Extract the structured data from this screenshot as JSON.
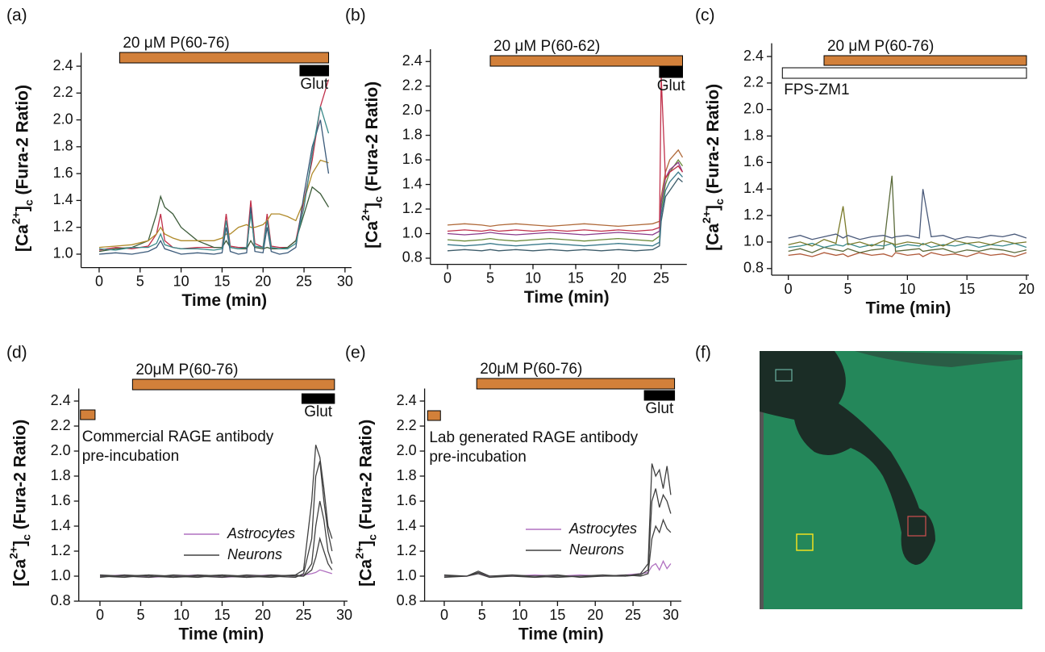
{
  "chart_data": [
    {
      "type": "line",
      "label": "(a)",
      "x_label": "Time (min)",
      "y_label": [
        "[Ca",
        "2+",
        "]",
        "c",
        " (Fura-2 Ratio)"
      ],
      "xlim": [
        -2.2,
        30.8
      ],
      "xticks": [
        0,
        5,
        10,
        15,
        20,
        25,
        30
      ],
      "ylim": [
        0.9,
        2.5
      ],
      "yticks": [
        {
          "value": 1,
          "label": "1.0"
        },
        1.2,
        1.4,
        1.6,
        1.8,
        {
          "value": 2,
          "label": "2.0"
        },
        2.2,
        2.4
      ],
      "bars": [
        {
          "label": "20 μM P(60-76)",
          "span": [
            2.5,
            28
          ],
          "color": "#d2803a"
        },
        {
          "label": "Glut",
          "span": [
            24.5,
            28
          ],
          "color": "#000000"
        }
      ],
      "x": [
        0,
        2,
        4,
        6,
        7,
        7.5,
        8,
        9,
        10,
        12,
        14,
        15,
        15.5,
        16,
        17,
        18,
        18.5,
        19,
        20,
        20.5,
        21,
        22,
        23,
        24,
        25,
        26,
        27,
        28
      ],
      "series": [
        {
          "color": "#c0304a",
          "values": [
            1.03,
            1.05,
            1.04,
            1.06,
            1.15,
            1.3,
            1.1,
            1.05,
            1.04,
            1.05,
            1.05,
            1.05,
            1.3,
            1.06,
            1.05,
            1.05,
            1.4,
            1.08,
            1.05,
            1.3,
            1.06,
            1.05,
            1.05,
            1.1,
            1.4,
            1.7,
            2.1,
            2.3
          ]
        },
        {
          "color": "#3d5c3a",
          "values": [
            1.02,
            1.04,
            1.05,
            1.1,
            1.3,
            1.43,
            1.35,
            1.3,
            1.2,
            1.1,
            1.05,
            1.05,
            1.1,
            1.05,
            1.04,
            1.04,
            1.1,
            1.05,
            1.04,
            1.05,
            1.04,
            1.04,
            1.05,
            1.1,
            1.3,
            1.5,
            1.45,
            1.35
          ]
        },
        {
          "color": "#b08a2a",
          "values": [
            1.05,
            1.06,
            1.07,
            1.1,
            1.15,
            1.2,
            1.15,
            1.12,
            1.1,
            1.1,
            1.1,
            1.12,
            1.15,
            1.15,
            1.2,
            1.22,
            1.2,
            1.2,
            1.22,
            1.25,
            1.3,
            1.3,
            1.28,
            1.25,
            1.4,
            1.6,
            1.7,
            1.68
          ]
        },
        {
          "color": "#3b5a7a",
          "values": [
            1.0,
            1.01,
            1.0,
            1.02,
            1.05,
            1.1,
            1.04,
            1.02,
            1.0,
            1.01,
            1.0,
            1.01,
            1.2,
            1.02,
            1.0,
            1.01,
            1.35,
            1.02,
            1.01,
            1.2,
            1.02,
            1.0,
            1.01,
            1.05,
            1.45,
            1.8,
            2.0,
            1.6
          ]
        },
        {
          "color": "#3a8a8a",
          "values": [
            1.04,
            1.03,
            1.05,
            1.05,
            1.08,
            1.15,
            1.07,
            1.05,
            1.04,
            1.04,
            1.03,
            1.04,
            1.25,
            1.05,
            1.04,
            1.05,
            1.3,
            1.06,
            1.05,
            1.25,
            1.05,
            1.04,
            1.04,
            1.08,
            1.35,
            1.75,
            2.1,
            1.9
          ]
        }
      ]
    },
    {
      "type": "line",
      "label": "(b)",
      "x_label": "Time (min)",
      "y_label": [
        "[Ca",
        "2+",
        "]",
        "c",
        " (Fura-2 Ratio)"
      ],
      "xlim": [
        -2,
        28
      ],
      "xticks": [
        0,
        5,
        10,
        15,
        20,
        25
      ],
      "ylim": [
        0.75,
        2.5
      ],
      "yticks": [
        0.8,
        {
          "value": 1,
          "label": "1.0"
        },
        1.2,
        1.4,
        1.6,
        1.8,
        {
          "value": 2,
          "label": "2.0"
        },
        2.2,
        2.4
      ],
      "bars": [
        {
          "label": "20 μM P(60-62)",
          "span": [
            5,
            27.5
          ],
          "color": "#d2803a"
        },
        {
          "label": "Glut",
          "span": [
            24.8,
            27.5
          ],
          "color": "#000000"
        }
      ],
      "x": [
        0,
        2,
        4,
        5,
        6,
        8,
        10,
        12,
        14,
        16,
        18,
        20,
        22,
        24,
        24.8,
        25,
        25.5,
        26,
        27,
        27.5
      ],
      "series": [
        {
          "color": "#3d5c6a",
          "values": [
            0.86,
            0.87,
            0.86,
            0.87,
            0.86,
            0.87,
            0.86,
            0.87,
            0.86,
            0.87,
            0.86,
            0.87,
            0.86,
            0.87,
            0.9,
            1.1,
            1.3,
            1.35,
            1.45,
            1.42
          ]
        },
        {
          "color": "#6a8a3a",
          "values": [
            0.95,
            0.94,
            0.95,
            0.96,
            0.95,
            0.94,
            0.95,
            0.96,
            0.95,
            0.94,
            0.95,
            0.96,
            0.95,
            0.94,
            0.98,
            1.2,
            1.4,
            1.5,
            1.6,
            1.55
          ]
        },
        {
          "color": "#b06a3a",
          "values": [
            1.07,
            1.08,
            1.07,
            1.06,
            1.07,
            1.08,
            1.07,
            1.06,
            1.07,
            1.08,
            1.07,
            1.06,
            1.07,
            1.08,
            1.1,
            1.3,
            1.5,
            1.6,
            1.68,
            1.62
          ]
        },
        {
          "color": "#8a3a8a",
          "values": [
            1.0,
            0.99,
            1.0,
            1.01,
            1.0,
            0.99,
            1.0,
            1.01,
            1.0,
            0.99,
            1.0,
            1.01,
            1.0,
            0.99,
            1.02,
            1.25,
            1.45,
            1.52,
            1.58,
            1.5
          ]
        },
        {
          "color": "#3a7a8a",
          "values": [
            0.91,
            0.9,
            0.91,
            0.92,
            0.91,
            0.9,
            0.91,
            0.92,
            0.91,
            0.9,
            0.91,
            0.92,
            0.91,
            0.9,
            0.93,
            1.15,
            1.35,
            1.42,
            1.5,
            1.46
          ]
        },
        {
          "color": "#c0304a",
          "values": [
            1.02,
            1.03,
            1.02,
            1.03,
            1.02,
            1.03,
            1.02,
            1.03,
            1.02,
            1.03,
            1.02,
            1.03,
            1.02,
            1.03,
            1.05,
            2.28,
            1.45,
            1.5,
            1.55,
            1.5
          ]
        }
      ]
    },
    {
      "type": "line",
      "label": "(c)",
      "x_label": "Time (min)",
      "y_label": [
        "[Ca",
        "2+",
        "]",
        "c",
        " (Fura-2 Ratio)"
      ],
      "xlim": [
        -1.4,
        20.2
      ],
      "xticks": [
        0,
        5,
        10,
        15,
        20
      ],
      "ylim": [
        0.75,
        2.5
      ],
      "yticks": [
        0.8,
        {
          "value": 1,
          "label": "1.0"
        },
        1.2,
        1.4,
        1.6,
        1.8,
        {
          "value": 2,
          "label": "2.0"
        },
        2.2,
        2.4
      ],
      "bars": [
        {
          "label": "20 μM P(60-76)",
          "span": [
            3,
            20
          ],
          "color": "#d2803a"
        },
        {
          "label": "FPS-ZM1",
          "span": [
            -0.5,
            20
          ],
          "color": "#ffffff"
        }
      ],
      "x": [
        0,
        1,
        2,
        3,
        4,
        4.6,
        5,
        6,
        7,
        8,
        8.7,
        9,
        10,
        11,
        11.3,
        12,
        13,
        14,
        15,
        16,
        17,
        18,
        19,
        20
      ],
      "series": [
        {
          "color": "#b05a3a",
          "values": [
            0.9,
            0.91,
            0.89,
            0.92,
            0.9,
            0.91,
            0.89,
            0.92,
            0.9,
            0.91,
            0.89,
            0.92,
            0.9,
            0.91,
            0.89,
            0.92,
            0.9,
            0.91,
            0.89,
            0.92,
            0.9,
            0.91,
            0.89,
            0.92
          ]
        },
        {
          "color": "#5a6a3a",
          "values": [
            0.93,
            0.95,
            0.92,
            0.96,
            0.94,
            0.93,
            0.95,
            0.92,
            0.94,
            0.95,
            1.5,
            0.93,
            0.94,
            0.95,
            0.93,
            0.94,
            0.95,
            0.92,
            0.94,
            0.93,
            0.95,
            0.94,
            0.92,
            0.94
          ]
        },
        {
          "color": "#3a8a8a",
          "values": [
            0.96,
            0.97,
            0.99,
            0.96,
            0.98,
            0.97,
            0.99,
            0.96,
            0.98,
            0.97,
            0.99,
            0.96,
            0.98,
            0.97,
            0.99,
            0.96,
            0.98,
            0.97,
            0.99,
            0.96,
            0.98,
            0.97,
            0.99,
            0.96
          ]
        },
        {
          "color": "#7a7a2a",
          "values": [
            0.98,
            1.0,
            0.97,
            1.02,
            0.99,
            1.27,
            0.98,
            1.0,
            0.97,
            1.01,
            0.99,
            0.98,
            1.0,
            0.99,
            0.98,
            1.0,
            0.97,
            1.01,
            0.99,
            1.0,
            0.98,
            1.01,
            0.99,
            1.0
          ]
        },
        {
          "color": "#4a5a7a",
          "values": [
            1.03,
            1.05,
            1.02,
            1.04,
            1.06,
            1.03,
            1.05,
            1.02,
            1.04,
            1.05,
            1.03,
            1.04,
            1.05,
            1.03,
            1.4,
            1.04,
            1.05,
            1.02,
            1.04,
            1.03,
            1.05,
            1.04,
            1.06,
            1.03
          ]
        }
      ]
    },
    {
      "type": "line",
      "label": "(d)",
      "x_label": "Time (min)",
      "y_label": [
        "[Ca",
        "2+",
        "]",
        "c",
        " (Fura-2 Ratio)"
      ],
      "xlim": [
        -2.6,
        30.4
      ],
      "xticks": [
        0,
        5,
        10,
        15,
        20,
        25,
        30
      ],
      "ylim": [
        0.8,
        2.5
      ],
      "yticks": [
        0.8,
        {
          "value": 1,
          "label": "1.0"
        },
        1.2,
        1.4,
        1.6,
        1.8,
        {
          "value": 2,
          "label": "2.0"
        },
        2.2,
        2.4
      ],
      "bars": [
        {
          "label": "20μM P(60-76)",
          "span": [
            4,
            28.8
          ],
          "color": "#d2803a"
        },
        {
          "label": "Glut",
          "span": [
            24.8,
            28.8
          ],
          "color": "#000000"
        },
        {
          "label": [
            "Commercial RAGE antibody",
            "pre-incubation"
          ],
          "span": [
            -2.4,
            -0.6
          ],
          "color": "#d2803a"
        }
      ],
      "x": [
        0,
        3,
        6,
        9,
        12,
        15,
        18,
        21,
        24,
        25,
        26,
        26.5,
        27,
        27.5,
        28,
        28.5
      ],
      "series": [
        {
          "name": "Astrocytes",
          "color": "#b070c0",
          "values": [
            1.0,
            1.01,
            0.99,
            1.0,
            1.01,
            0.99,
            1.0,
            1.01,
            1.0,
            1.01,
            1.02,
            1.03,
            1.05,
            1.04,
            1.03,
            1.02
          ]
        },
        {
          "name": "Neurons",
          "color": "#404040",
          "values": [
            1.0,
            0.99,
            1.01,
            1.0,
            0.99,
            1.01,
            1.0,
            0.99,
            1.01,
            1.05,
            1.6,
            2.05,
            1.95,
            1.7,
            1.4,
            1.3
          ]
        },
        {
          "color": "#404040",
          "values": [
            1.01,
            1.0,
            0.99,
            1.01,
            1.0,
            0.99,
            1.01,
            1.0,
            0.99,
            1.02,
            1.3,
            1.8,
            1.92,
            1.6,
            1.35,
            1.2
          ]
        },
        {
          "color": "#404040",
          "values": [
            0.99,
            1.01,
            1.0,
            0.99,
            1.01,
            1.0,
            0.99,
            1.01,
            1.0,
            1.0,
            1.1,
            1.4,
            1.6,
            1.45,
            1.2,
            1.1
          ]
        },
        {
          "color": "#404040",
          "values": [
            1.0,
            1.0,
            1.01,
            0.99,
            1.0,
            1.01,
            0.99,
            1.0,
            1.01,
            1.0,
            1.05,
            1.15,
            1.3,
            1.2,
            1.1,
            1.05
          ]
        }
      ]
    },
    {
      "type": "line",
      "label": "(e)",
      "x_label": "Time (min)",
      "y_label": [
        "[Ca",
        "2+",
        "]",
        "c",
        " (Fura-2 Ratio)"
      ],
      "xlim": [
        -2.6,
        31.4
      ],
      "xticks": [
        0,
        5,
        10,
        15,
        20,
        25,
        30
      ],
      "ylim": [
        0.8,
        2.5
      ],
      "yticks": [
        0.8,
        {
          "value": 1,
          "label": "1.0"
        },
        1.2,
        1.4,
        1.6,
        1.8,
        {
          "value": 2,
          "label": "2.0"
        },
        2.2,
        2.4
      ],
      "bars": [
        {
          "label": "20μM P(60-76)",
          "span": [
            4.3,
            30.5
          ],
          "color": "#d2803a"
        },
        {
          "label": "Glut",
          "span": [
            26.5,
            30.5
          ],
          "color": "#000000"
        },
        {
          "label": [
            "Lab generated RAGE antibody",
            "pre-incubation"
          ],
          "span": [
            -2.2,
            -0.5
          ],
          "color": "#d2803a"
        }
      ],
      "x": [
        0,
        3,
        4.5,
        6,
        9,
        12,
        15,
        18,
        21,
        24,
        26,
        27,
        27.5,
        28,
        28.5,
        29,
        29.5,
        30
      ],
      "series": [
        {
          "name": "Astrocytes",
          "color": "#b070c0",
          "values": [
            1.0,
            1.0,
            1.02,
            1.0,
            1.0,
            1.01,
            1.0,
            1.01,
            1.0,
            1.01,
            1.02,
            1.03,
            1.08,
            1.1,
            1.05,
            1.12,
            1.06,
            1.1
          ]
        },
        {
          "name": "Neurons",
          "color": "#404040",
          "values": [
            1.0,
            1.0,
            1.04,
            1.0,
            1.0,
            0.99,
            1.0,
            1.0,
            1.01,
            1.0,
            1.02,
            1.1,
            1.9,
            1.8,
            1.85,
            1.7,
            1.88,
            1.65
          ]
        },
        {
          "color": "#404040",
          "values": [
            0.99,
            1.0,
            1.02,
            0.99,
            1.0,
            1.0,
            0.99,
            1.0,
            1.0,
            1.0,
            1.01,
            1.05,
            1.6,
            1.7,
            1.55,
            1.65,
            1.6,
            1.5
          ]
        },
        {
          "color": "#404040",
          "values": [
            1.01,
            1.0,
            1.03,
            1.0,
            1.01,
            1.0,
            1.01,
            0.99,
            1.0,
            1.01,
            1.0,
            1.02,
            1.3,
            1.4,
            1.35,
            1.45,
            1.38,
            1.35
          ]
        }
      ]
    }
  ],
  "image_panel": {
    "label": "(f)"
  }
}
